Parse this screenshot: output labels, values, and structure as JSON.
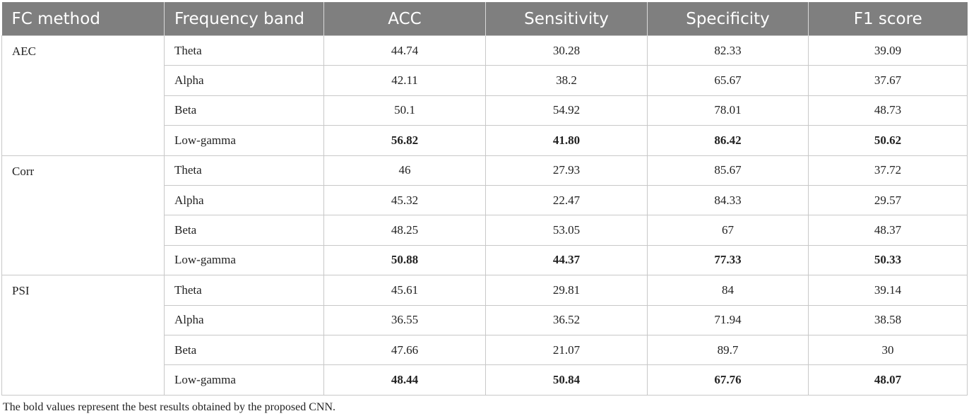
{
  "table": {
    "headers": [
      "FC method",
      "Frequency band",
      "ACC",
      "Sensitivity",
      "Specificity",
      "F1 score"
    ],
    "groups": [
      {
        "method": "AEC",
        "rows": [
          {
            "band": "Theta",
            "values": [
              "44.74",
              "30.28",
              "82.33",
              "39.09"
            ],
            "bold": false
          },
          {
            "band": "Alpha",
            "values": [
              "42.11",
              "38.2",
              "65.67",
              "37.67"
            ],
            "bold": false
          },
          {
            "band": "Beta",
            "values": [
              "50.1",
              "54.92",
              "78.01",
              "48.73"
            ],
            "bold": false
          },
          {
            "band": "Low-gamma",
            "values": [
              "56.82",
              "41.80",
              "86.42",
              "50.62"
            ],
            "bold": true
          }
        ]
      },
      {
        "method": "Corr",
        "rows": [
          {
            "band": "Theta",
            "values": [
              "46",
              "27.93",
              "85.67",
              "37.72"
            ],
            "bold": false
          },
          {
            "band": "Alpha",
            "values": [
              "45.32",
              "22.47",
              "84.33",
              "29.57"
            ],
            "bold": false
          },
          {
            "band": "Beta",
            "values": [
              "48.25",
              "53.05",
              "67",
              "48.37"
            ],
            "bold": false
          },
          {
            "band": "Low-gamma",
            "values": [
              "50.88",
              "44.37",
              "77.33",
              "50.33"
            ],
            "bold": true
          }
        ]
      },
      {
        "method": "PSI",
        "rows": [
          {
            "band": "Theta",
            "values": [
              "45.61",
              "29.81",
              "84",
              "39.14"
            ],
            "bold": false
          },
          {
            "band": "Alpha",
            "values": [
              "36.55",
              "36.52",
              "71.94",
              "38.58"
            ],
            "bold": false
          },
          {
            "band": "Beta",
            "values": [
              "47.66",
              "21.07",
              "89.7",
              "30"
            ],
            "bold": false
          },
          {
            "band": "Low-gamma",
            "values": [
              "48.44",
              "50.84",
              "67.76",
              "48.07"
            ],
            "bold": true
          }
        ]
      }
    ]
  },
  "caption": "The bold values represent the best results obtained by the proposed CNN."
}
